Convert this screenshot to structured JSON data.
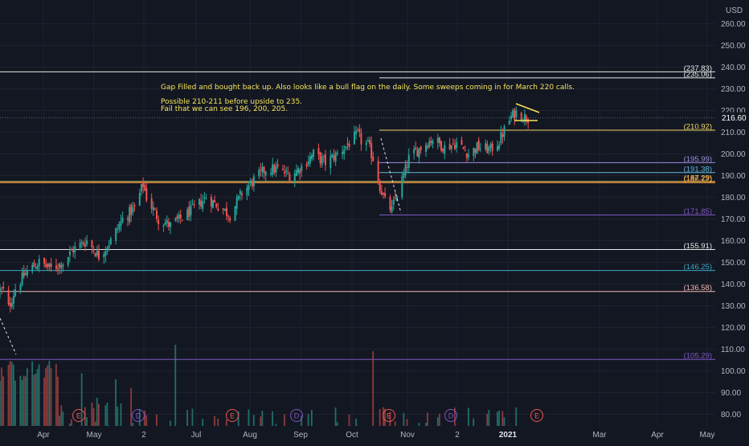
{
  "chart_data": {
    "type": "candlestick",
    "currency_label": "USD",
    "last_price": "216.60",
    "y_ticks": [
      80,
      90,
      100,
      110,
      120,
      130,
      140,
      150,
      160,
      170,
      180,
      190,
      200,
      210,
      220,
      230,
      240,
      250,
      260
    ],
    "y_tick_labels": [
      "80.00",
      "90.00",
      "100.00",
      "110.00",
      "120.00",
      "130.00",
      "140.00",
      "150.00",
      "160.00",
      "170.00",
      "180.00",
      "190.00",
      "200.00",
      "210.00",
      "220.00",
      "230.00",
      "240.00",
      "250.00",
      "260.00"
    ],
    "x_labels": [
      "Apr",
      "May",
      "2",
      "Jul",
      "Aug",
      "Sep",
      "Oct",
      "Nov",
      "2",
      "2021",
      "Mar",
      "Apr",
      "May"
    ],
    "x_label_bold": [
      false,
      false,
      false,
      false,
      false,
      false,
      false,
      false,
      false,
      true,
      false,
      false,
      false
    ],
    "colors": {
      "up": "#26a69a",
      "down": "#ef5350",
      "vol_up": "#1f6f68",
      "vol_down": "#8e3a3c",
      "grid": "#1e2230",
      "axis_text": "#b2b5be",
      "annotation": "#f5e35a"
    },
    "horizontal_levels": [
      {
        "value": 237.83,
        "label": "(237.83)",
        "color": "#e8e8e8"
      },
      {
        "value": 235.06,
        "label": "(235.06)",
        "color": "#e8e8e8"
      },
      {
        "value": 210.92,
        "label": "(210.92)",
        "color": "#f0d866"
      },
      {
        "value": 195.99,
        "label": "(195.99)",
        "color": "#9c8ee0"
      },
      {
        "value": 191.38,
        "label": "(191.38)",
        "color": "#5fb8d8"
      },
      {
        "value": 187.29,
        "label": "(187.29)",
        "color": "#f0d866"
      },
      {
        "value": 186.72,
        "label": "(186.72)",
        "color": "#ff9a3c"
      },
      {
        "value": 171.85,
        "label": "(171.85)",
        "color": "#7e57c2"
      },
      {
        "value": 155.91,
        "label": "(155.91)",
        "color": "#e8e8e8"
      },
      {
        "value": 146.25,
        "label": "(146.25)",
        "color": "#3aa9c7"
      },
      {
        "value": 136.58,
        "label": "(136.58)",
        "color": "#f0b8b0"
      },
      {
        "value": 105.29,
        "label": "(105.29)",
        "color": "#7e57c2"
      }
    ],
    "annotation": {
      "line1": "Gap Filled and bought back up.  Also looks like a bull flag on the daily.  Some sweeps coming in for March 220 calls.",
      "line2": "Possible 210-211 before upside to 235.",
      "line3": "Fail that we can see 196, 200, 205."
    },
    "earnings_markers": [
      "E",
      "D",
      "E",
      "D",
      "E",
      "D",
      "E"
    ],
    "anchors": [
      {
        "date": "2020-03-20",
        "close": 137
      },
      {
        "date": "2020-03-23",
        "close": 129
      },
      {
        "date": "2020-03-27",
        "close": 138
      },
      {
        "date": "2020-04-03",
        "close": 146
      },
      {
        "date": "2020-04-10",
        "close": 150
      },
      {
        "date": "2020-04-17",
        "close": 147
      },
      {
        "date": "2020-04-24",
        "close": 150
      },
      {
        "date": "2020-04-30",
        "close": 156
      },
      {
        "date": "2020-05-08",
        "close": 160
      },
      {
        "date": "2020-05-15",
        "close": 153
      },
      {
        "date": "2020-05-22",
        "close": 160
      },
      {
        "date": "2020-05-29",
        "close": 170
      },
      {
        "date": "2020-06-05",
        "close": 175
      },
      {
        "date": "2020-06-10",
        "close": 186
      },
      {
        "date": "2020-06-12",
        "close": 180
      },
      {
        "date": "2020-06-19",
        "close": 170
      },
      {
        "date": "2020-06-26",
        "close": 167
      },
      {
        "date": "2020-07-02",
        "close": 170
      },
      {
        "date": "2020-07-10",
        "close": 175
      },
      {
        "date": "2020-07-17",
        "close": 180
      },
      {
        "date": "2020-07-24",
        "close": 176
      },
      {
        "date": "2020-07-31",
        "close": 172
      },
      {
        "date": "2020-08-07",
        "close": 182
      },
      {
        "date": "2020-08-14",
        "close": 188
      },
      {
        "date": "2020-08-21",
        "close": 193
      },
      {
        "date": "2020-08-28",
        "close": 193
      },
      {
        "date": "2020-09-04",
        "close": 190
      },
      {
        "date": "2020-09-11",
        "close": 194
      },
      {
        "date": "2020-09-18",
        "close": 200
      },
      {
        "date": "2020-09-25",
        "close": 196
      },
      {
        "date": "2020-10-02",
        "close": 200
      },
      {
        "date": "2020-10-09",
        "close": 205
      },
      {
        "date": "2020-10-14",
        "close": 209
      },
      {
        "date": "2020-10-16",
        "close": 206
      },
      {
        "date": "2020-10-20",
        "close": 204
      },
      {
        "date": "2020-10-23",
        "close": 198
      },
      {
        "date": "2020-10-27",
        "close": 185
      },
      {
        "date": "2020-10-30",
        "close": 178
      },
      {
        "date": "2020-11-03",
        "close": 174
      },
      {
        "date": "2020-11-06",
        "close": 182
      },
      {
        "date": "2020-11-10",
        "close": 190
      },
      {
        "date": "2020-11-13",
        "close": 198
      },
      {
        "date": "2020-11-20",
        "close": 203
      },
      {
        "date": "2020-11-27",
        "close": 207
      },
      {
        "date": "2020-12-04",
        "close": 203
      },
      {
        "date": "2020-12-11",
        "close": 205
      },
      {
        "date": "2020-12-18",
        "close": 200
      },
      {
        "date": "2020-12-23",
        "close": 203
      },
      {
        "date": "2020-12-31",
        "close": 202
      },
      {
        "date": "2021-01-05",
        "close": 206
      },
      {
        "date": "2021-01-08",
        "close": 211
      },
      {
        "date": "2021-01-12",
        "close": 217
      },
      {
        "date": "2021-01-15",
        "close": 219
      },
      {
        "date": "2021-01-20",
        "close": 217
      },
      {
        "date": "2021-01-22",
        "close": 216.6
      }
    ],
    "volume_values": {
      "min": 55,
      "max": 108,
      "spikes": [
        {
          "date": "2020-06-29",
          "value": 112
        },
        {
          "date": "2020-10-23",
          "value": 109
        }
      ]
    }
  }
}
